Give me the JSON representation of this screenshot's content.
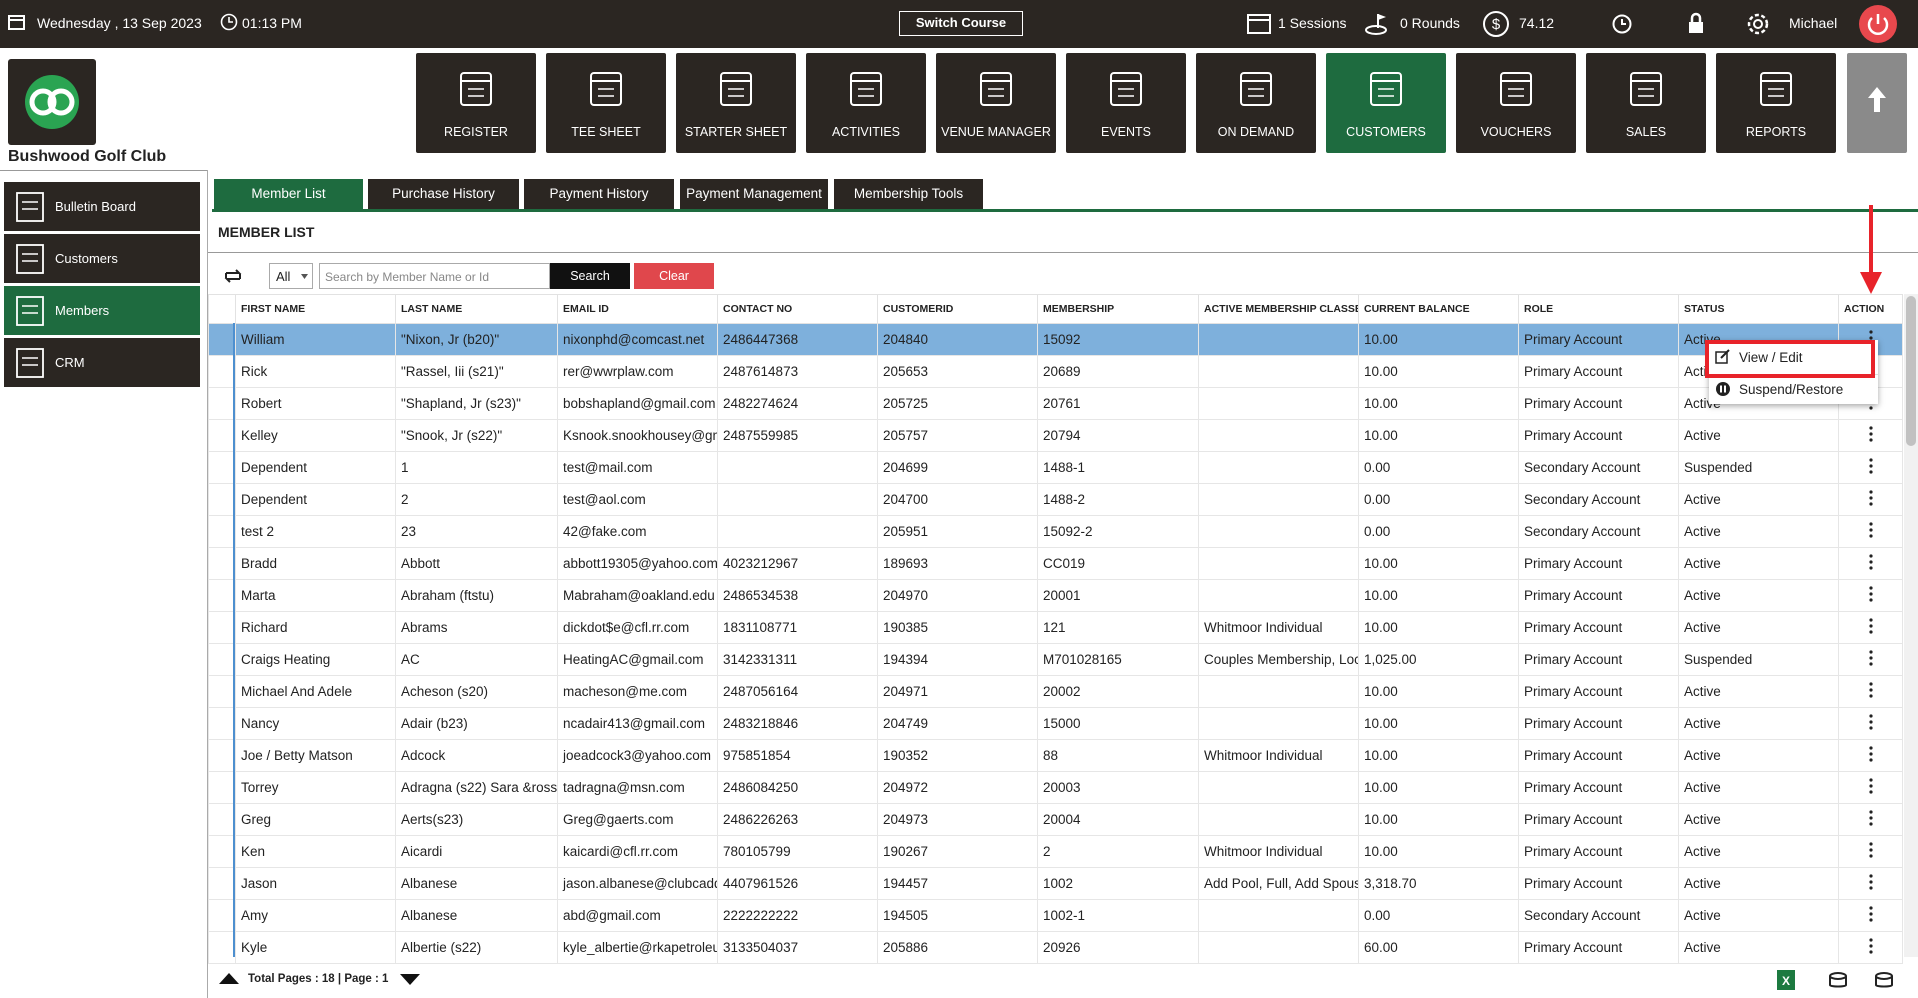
{
  "header": {
    "date": "Wednesday ,  13 Sep 2023",
    "time": "01:13 PM",
    "switch_course": "Switch Course",
    "sessions": "1 Sessions",
    "rounds": "0 Rounds",
    "balance": "74.12",
    "user": "Michael"
  },
  "club_name": "Bushwood Golf Club",
  "nav": [
    "REGISTER",
    "TEE SHEET",
    "STARTER SHEET",
    "ACTIVITIES",
    "VENUE MANAGER",
    "EVENTS",
    "ON DEMAND",
    "CUSTOMERS",
    "VOUCHERS",
    "SALES",
    "REPORTS"
  ],
  "sidebar": [
    "Bulletin Board",
    "Customers",
    "Members",
    "CRM"
  ],
  "tabs": [
    "Member List",
    "Purchase History",
    "Payment History",
    "Payment Management",
    "Membership Tools"
  ],
  "section_title": "MEMBER LIST",
  "toolbar": {
    "filter": "All",
    "search_placeholder": "Search by Member Name or Id",
    "search_button": "Search",
    "clear_button": "Clear"
  },
  "table": {
    "columns": [
      "FIRST NAME",
      "LAST NAME",
      "EMAIL ID",
      "CONTACT NO",
      "CUSTOMERID",
      "MEMBERSHIP",
      "ACTIVE MEMBERSHIP CLASSES",
      "CURRENT BALANCE",
      "ROLE",
      "STATUS",
      "ACTION"
    ],
    "rows": [
      [
        "William",
        "\"Nixon, Jr (b20)\"",
        "nixonphd@comcast.net",
        "2486447368",
        "204840",
        "15092",
        null,
        "10.00",
        "Primary Account",
        "Active"
      ],
      [
        "Rick",
        "\"Rassel, Iii (s21)\"",
        "rer@wwrplaw.com",
        "2487614873",
        "205653",
        "20689",
        null,
        "10.00",
        "Primary Account",
        "Active"
      ],
      [
        "Robert",
        "\"Shapland, Jr (s23)\"",
        "bobshapland@gmail.com",
        "2482274624",
        "205725",
        "20761",
        null,
        "10.00",
        "Primary Account",
        "Active"
      ],
      [
        "Kelley",
        "\"Snook, Jr (s22)\"",
        "Ksnook.snookhousey@gmail.com",
        "2487559985",
        "205757",
        "20794",
        null,
        "10.00",
        "Primary Account",
        "Active"
      ],
      [
        "Dependent",
        "1",
        "test@mail.com",
        null,
        "204699",
        "1488-1",
        null,
        "0.00",
        "Secondary Account",
        "Suspended"
      ],
      [
        "Dependent",
        "2",
        "test@aol.com",
        null,
        "204700",
        "1488-2",
        null,
        "0.00",
        "Secondary Account",
        "Active"
      ],
      [
        "test 2",
        "23",
        "42@fake.com",
        null,
        "205951",
        "15092-2",
        null,
        "0.00",
        "Secondary Account",
        "Active"
      ],
      [
        "Bradd",
        "Abbott",
        "abbott19305@yahoo.com",
        "4023212967",
        "189693",
        "CC019",
        null,
        "10.00",
        "Primary Account",
        "Active"
      ],
      [
        "Marta",
        "Abraham (ftstu)",
        "Mabraham@oakland.edu",
        "2486534538",
        "204970",
        "20001",
        null,
        "10.00",
        "Primary Account",
        "Active"
      ],
      [
        " Richard",
        "Abrams",
        "dickdot$e@cfl.rr.com",
        "1831108771",
        "190385",
        "121",
        "Whitmoor Individual",
        "10.00",
        "Primary Account",
        "Active"
      ],
      [
        "Craigs Heating",
        "AC",
        "HeatingAC@gmail.com",
        "3142331311",
        "194394",
        "M701028165",
        "Couples Membership, Locker",
        "1,025.00",
        "Primary Account",
        "Suspended"
      ],
      [
        "Michael And Adele",
        "Acheson (s20)",
        "macheson@me.com",
        "2487056164",
        "204971",
        "20002",
        null,
        "10.00",
        "Primary Account",
        "Active"
      ],
      [
        "Nancy",
        "Adair (b23)",
        "ncadair413@gmail.com",
        "2483218846",
        "204749",
        "15000",
        null,
        "10.00",
        "Primary Account",
        "Active"
      ],
      [
        " Joe / Betty Matson",
        "Adcock",
        "joeadcock3@yahoo.com",
        "975851854",
        "190352",
        "88",
        "Whitmoor Individual",
        "10.00",
        "Primary Account",
        "Active"
      ],
      [
        "Torrey",
        "Adragna (s22) Sara &ross",
        "tadragna@msn.com",
        "2486084250",
        "204972",
        "20003",
        null,
        "10.00",
        "Primary Account",
        "Active"
      ],
      [
        "Greg",
        "Aerts(s23)",
        "Greg@gaerts.com",
        "2486226263",
        "204973",
        "20004",
        null,
        "10.00",
        "Primary Account",
        "Active"
      ],
      [
        " Ken",
        "Aicardi",
        "kaicardi@cfl.rr.com",
        "780105799",
        "190267",
        "2",
        "Whitmoor Individual",
        "10.00",
        "Primary Account",
        "Active"
      ],
      [
        "Jason",
        "Albanese",
        "jason.albanese@clubcaddie.com",
        "4407961526",
        "194457",
        "1002",
        "Add Pool, Full, Add Spouse",
        "3,318.70",
        "Primary Account",
        "Active"
      ],
      [
        "Amy",
        "Albanese",
        "abd@gmail.com",
        "2222222222",
        "194505",
        "1002-1",
        null,
        "0.00",
        "Secondary Account",
        "Active"
      ],
      [
        "Kyle",
        "Albertie (s22)",
        "kyle_albertie@rkapetroleum.com",
        "3133504037",
        "205886",
        "20926",
        null,
        "60.00",
        "Primary Account",
        "Active"
      ]
    ]
  },
  "action_menu": [
    "View / Edit",
    "Suspend/Restore"
  ],
  "footer": {
    "pagination": "Total Pages : 18 | Page : 1"
  }
}
